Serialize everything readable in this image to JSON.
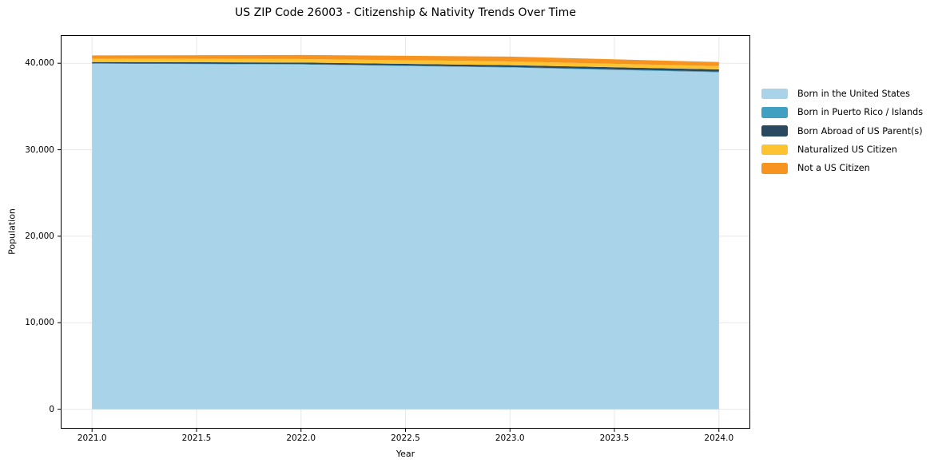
{
  "title": "US ZIP Code 26003 - Citizenship & Nativity Trends Over Time",
  "colors": {
    "background": "#ffffff",
    "grid": "#e7e7e7",
    "spine": "#000000",
    "text": "#000000"
  },
  "chart_data": {
    "type": "area",
    "stacked": true,
    "title": "US ZIP Code 26003 - Citizenship & Nativity Trends Over Time",
    "xlabel": "Year",
    "ylabel": "Population",
    "x": [
      2021,
      2022,
      2023,
      2024
    ],
    "series": [
      {
        "name": "Born in the United States",
        "color": "#a8d3e8",
        "values": [
          39950,
          39850,
          39500,
          38950
        ]
      },
      {
        "name": "Born in Puerto Rico / Islands",
        "color": "#41a0c1",
        "values": [
          40,
          50,
          60,
          80
        ]
      },
      {
        "name": "Born Abroad of US Parent(s)",
        "color": "#28495e",
        "values": [
          150,
          180,
          220,
          260
        ]
      },
      {
        "name": "Naturalized US Citizen",
        "color": "#fdc330",
        "values": [
          390,
          410,
          430,
          380
        ]
      },
      {
        "name": "Not a US Citizen",
        "color": "#f79420",
        "values": [
          380,
          470,
          560,
          470
        ]
      }
    ],
    "xlim": [
      2020.85,
      2024.15
    ],
    "ylim": [
      -2250,
      43250
    ],
    "xticks": [
      2021.0,
      2021.5,
      2022.0,
      2022.5,
      2023.0,
      2023.5,
      2024.0
    ],
    "yticks": [
      0,
      10000,
      20000,
      30000,
      40000
    ],
    "grid": true,
    "legend_position": "right",
    "legend_frame": false
  }
}
